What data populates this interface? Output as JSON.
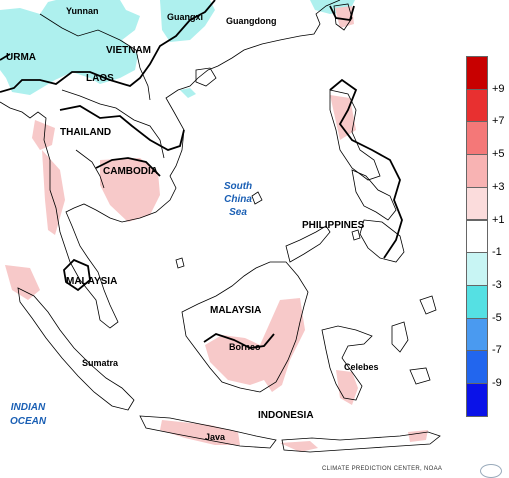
{
  "map": {
    "places": {
      "yunnan": "Yunnan",
      "guangxi": "Guangxi",
      "guangdong": "Guangdong",
      "burma": "URMA",
      "vietnam": "VIETNAM",
      "laos": "LAOS",
      "thailand": "THAILAND",
      "cambodia": "CAMBODIA",
      "south_china_sea": [
        "South",
        "China",
        "Sea"
      ],
      "philippines": "PHILIPPINES",
      "malaysia_west": "MALAYSIA",
      "malaysia_east": "MALAYSIA",
      "borneo": "Borneo",
      "sumatra": "Sumatra",
      "celebes": "Celebes",
      "indonesia": "INDONESIA",
      "java": "Java",
      "indian_ocean": [
        "INDIAN",
        "OCEAN"
      ]
    },
    "colors": {
      "land_above": "#f7c9c9",
      "land_below": "#aef0ee",
      "coast": "#000000",
      "contour": "#000000"
    }
  },
  "legend": {
    "bins": [
      {
        "color": "#c80000",
        "tick": "+9"
      },
      {
        "color": "#e83030",
        "tick": "+7"
      },
      {
        "color": "#f47878",
        "tick": "+5"
      },
      {
        "color": "#f8b3b3",
        "tick": "+3"
      },
      {
        "color": "#fbdcdc",
        "tick": "+1"
      },
      {
        "color": "#ffffff",
        "tick": "-1"
      },
      {
        "color": "#c8f5f4",
        "tick": "-3"
      },
      {
        "color": "#55e0e3",
        "tick": "-5"
      },
      {
        "color": "#4a9af0",
        "tick": "-7"
      },
      {
        "color": "#2266ee",
        "tick": "-9"
      },
      {
        "color": "#0a12e8",
        "tick": null
      }
    ]
  },
  "footer": {
    "credit": "CLIMATE PREDICTION CENTER, NOAA"
  }
}
